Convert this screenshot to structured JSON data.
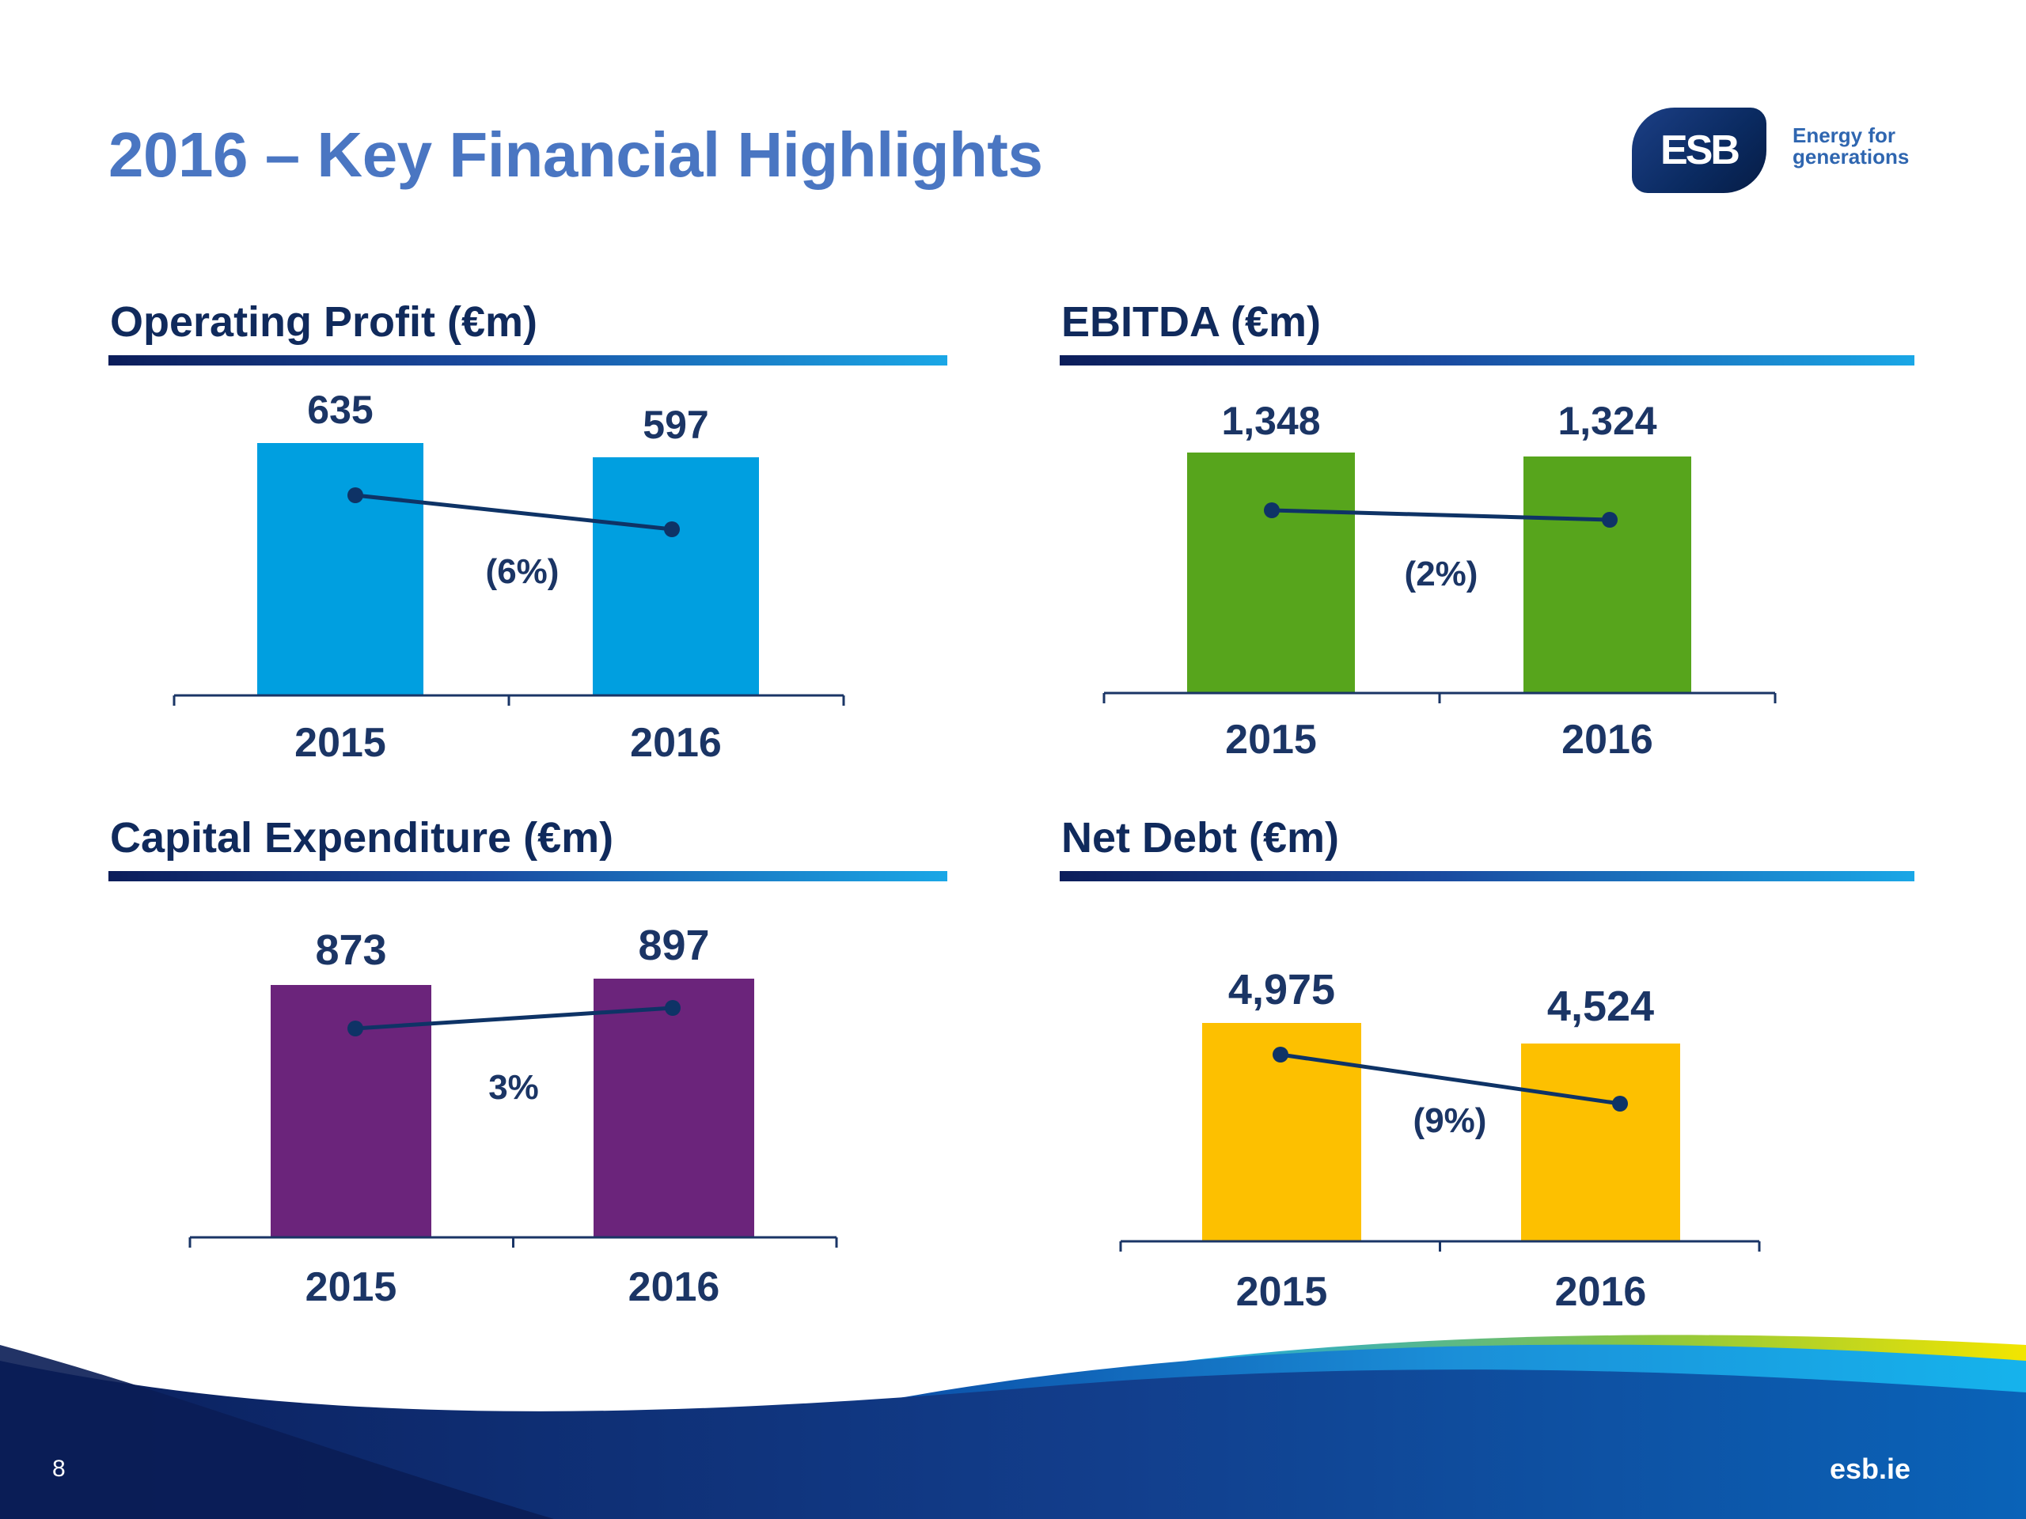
{
  "slide": {
    "title": "2016 – Key Financial Highlights",
    "page_number": "8",
    "website": "esb.ie"
  },
  "logo": {
    "mark": "ESB",
    "tagline_line1": "Energy for",
    "tagline_line2": "generations"
  },
  "chart_data": [
    {
      "type": "bar",
      "title": "Operating Profit (€m)",
      "categories": [
        "2015",
        "2016"
      ],
      "values": [
        635,
        597
      ],
      "labels": [
        "635",
        "597"
      ],
      "change_label": "(6%)",
      "color": "#009fe0"
    },
    {
      "type": "bar",
      "title": "EBITDA (€m)",
      "categories": [
        "2015",
        "2016"
      ],
      "values": [
        1348,
        1324
      ],
      "labels": [
        "1,348",
        "1,324"
      ],
      "change_label": "(2%)",
      "color": "#57a51c"
    },
    {
      "type": "bar",
      "title": "Capital Expenditure (€m)",
      "categories": [
        "2015",
        "2016"
      ],
      "values": [
        873,
        897
      ],
      "labels": [
        "873",
        "897"
      ],
      "change_label": "3%",
      "color": "#6b247b"
    },
    {
      "type": "bar",
      "title": "Net Debt (€m)",
      "categories": [
        "2015",
        "2016"
      ],
      "values": [
        4975,
        4524
      ],
      "labels": [
        "4,975",
        "4,524"
      ],
      "change_label": "(9%)",
      "color": "#fdc000"
    }
  ],
  "colors": {
    "title": "#4a76c2",
    "heading": "#102a5c",
    "trend_line": "#0e3366"
  }
}
